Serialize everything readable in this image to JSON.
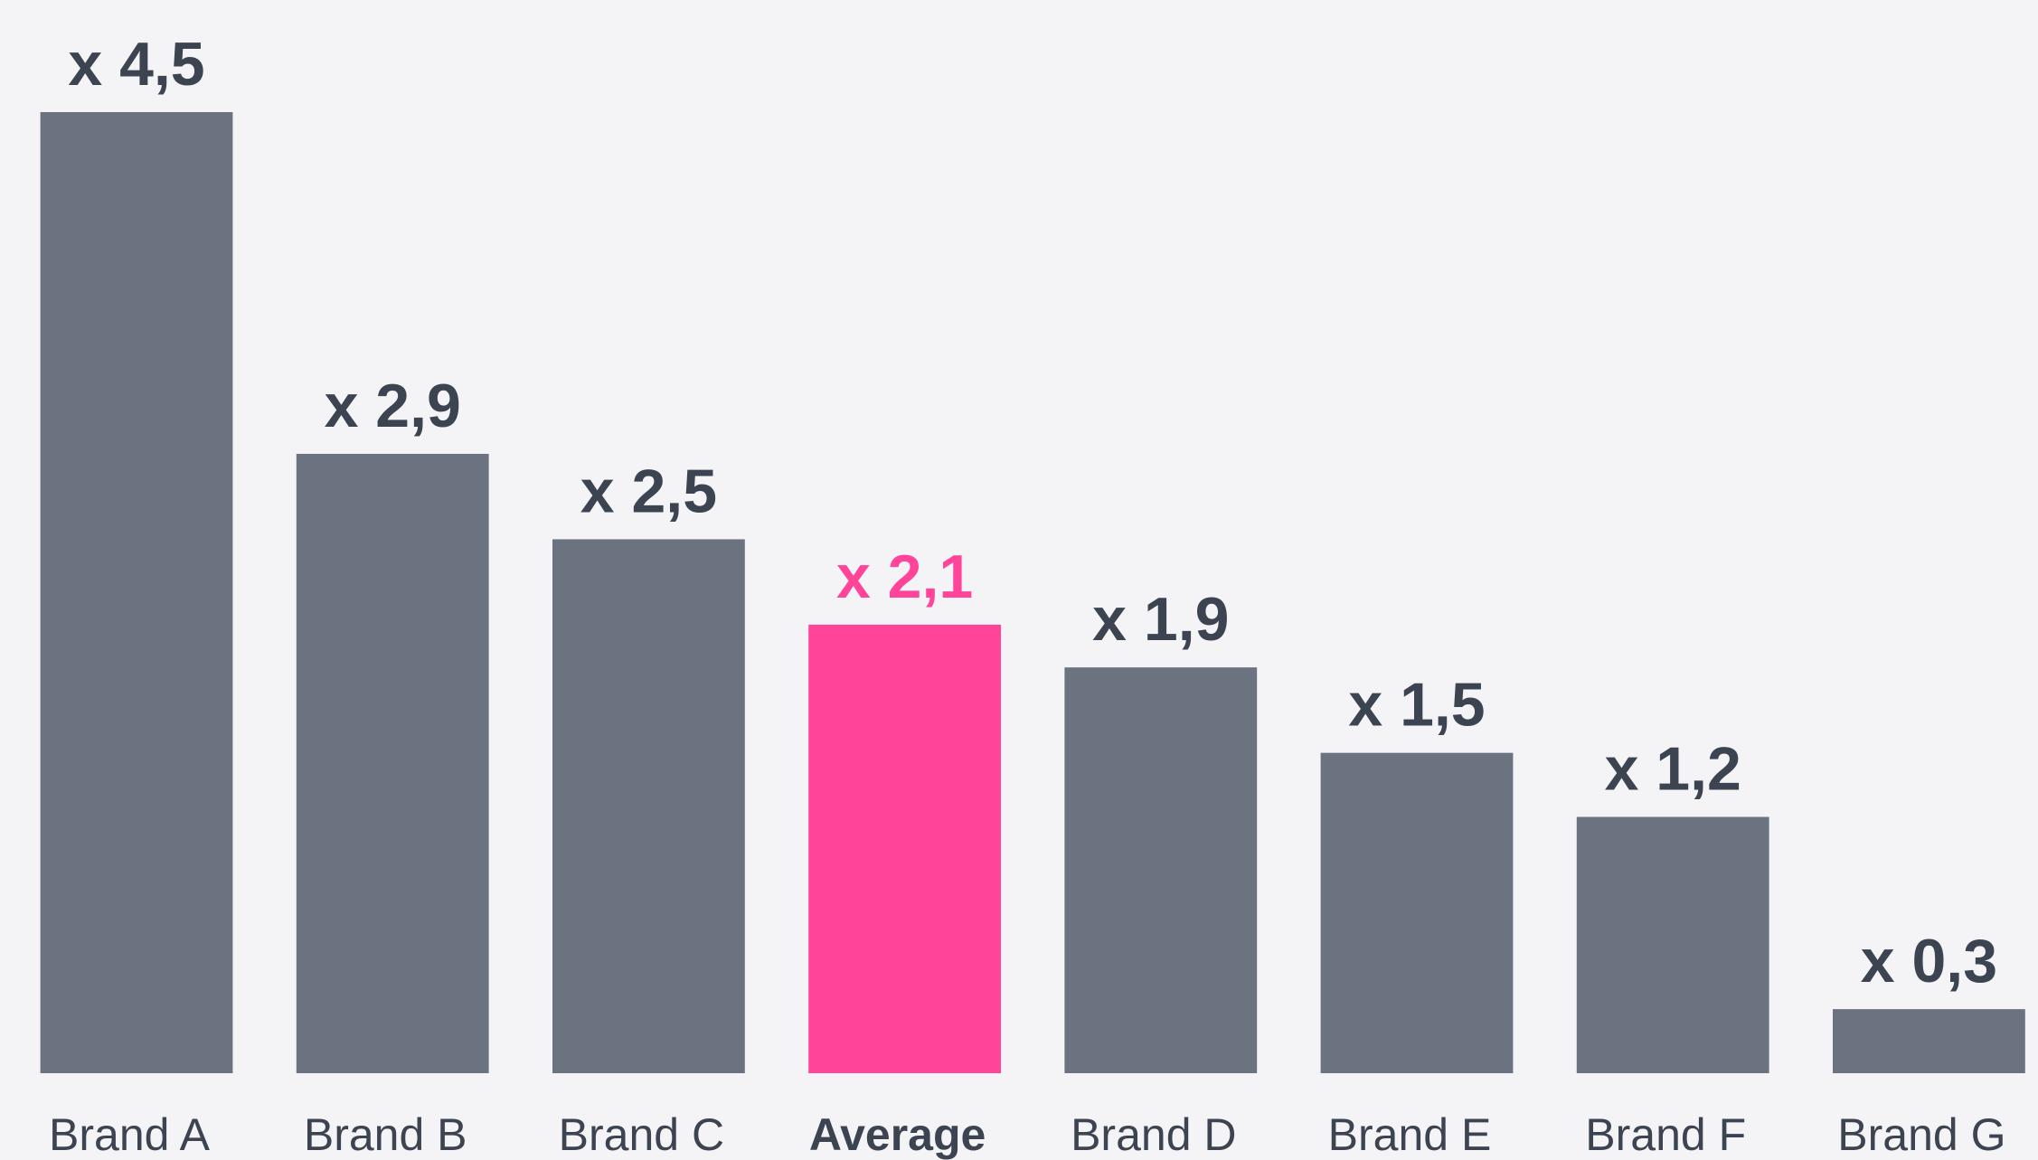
{
  "chart_data": {
    "type": "bar",
    "categories": [
      "Brand A",
      "Brand B",
      "Brand C",
      "Average",
      "Brand D",
      "Brand E",
      "Brand F",
      "Brand G"
    ],
    "values": [
      4.5,
      2.9,
      2.5,
      2.1,
      1.9,
      1.5,
      1.2,
      0.3
    ],
    "value_labels": [
      "x 4,5",
      "x 2,9",
      "x 2,5",
      "x 2,1",
      "x 1,9",
      "x 1,5",
      "x 1,2",
      "x 0,3"
    ],
    "color": "#6b7280",
    "colors": [
      "#6b7280",
      "#6b7280",
      "#6b7280",
      "#ff4499",
      "#6b7280",
      "#6b7280",
      "#6b7280",
      "#6b7280"
    ],
    "label_color": "#3d4451",
    "ylim": [
      0,
      4.5
    ]
  }
}
